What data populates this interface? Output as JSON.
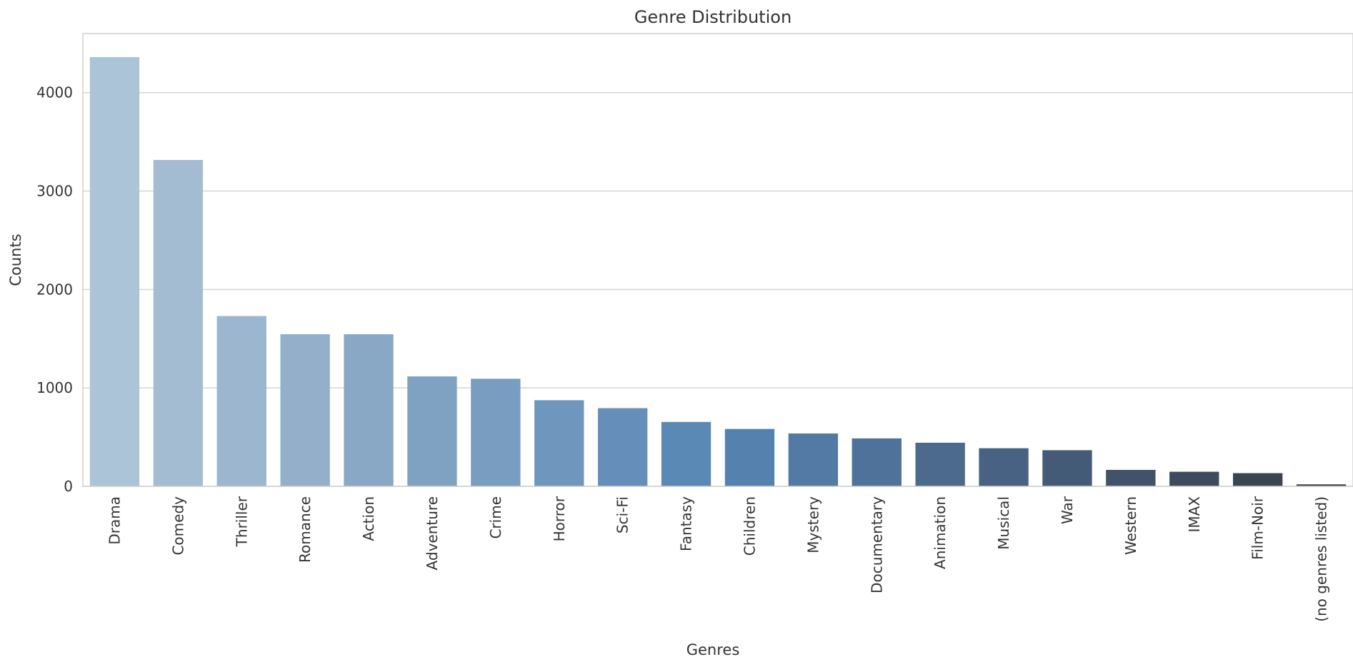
{
  "chart_data": {
    "type": "bar",
    "title": "Genre Distribution",
    "xlabel": "Genres",
    "ylabel": "Counts",
    "ylim": [
      0,
      4600
    ],
    "yticks": [
      0,
      1000,
      2000,
      3000,
      4000
    ],
    "grid": true,
    "categories": [
      "Drama",
      "Comedy",
      "Thriller",
      "Romance",
      "Action",
      "Adventure",
      "Crime",
      "Horror",
      "Sci-Fi",
      "Fantasy",
      "Children",
      "Mystery",
      "Documentary",
      "Animation",
      "Musical",
      "War",
      "Western",
      "IMAX",
      "Film-Noir",
      "(no genres listed)"
    ],
    "values": [
      4361,
      3316,
      1730,
      1545,
      1545,
      1117,
      1093,
      875,
      794,
      654,
      583,
      537,
      487,
      443,
      387,
      367,
      167,
      148,
      134,
      20
    ],
    "colors": [
      "#abc4d8",
      "#a3bcd2",
      "#9bb6ce",
      "#93afc9",
      "#89a8c6",
      "#7fa2c3",
      "#789dc0",
      "#6f96bd",
      "#658fba",
      "#5b89b6",
      "#5481ae",
      "#527aa5",
      "#4f729a",
      "#4b6a8e",
      "#486283",
      "#445b77",
      "#41526a",
      "#3e4b5f",
      "#3a4552",
      "#383f48"
    ]
  }
}
